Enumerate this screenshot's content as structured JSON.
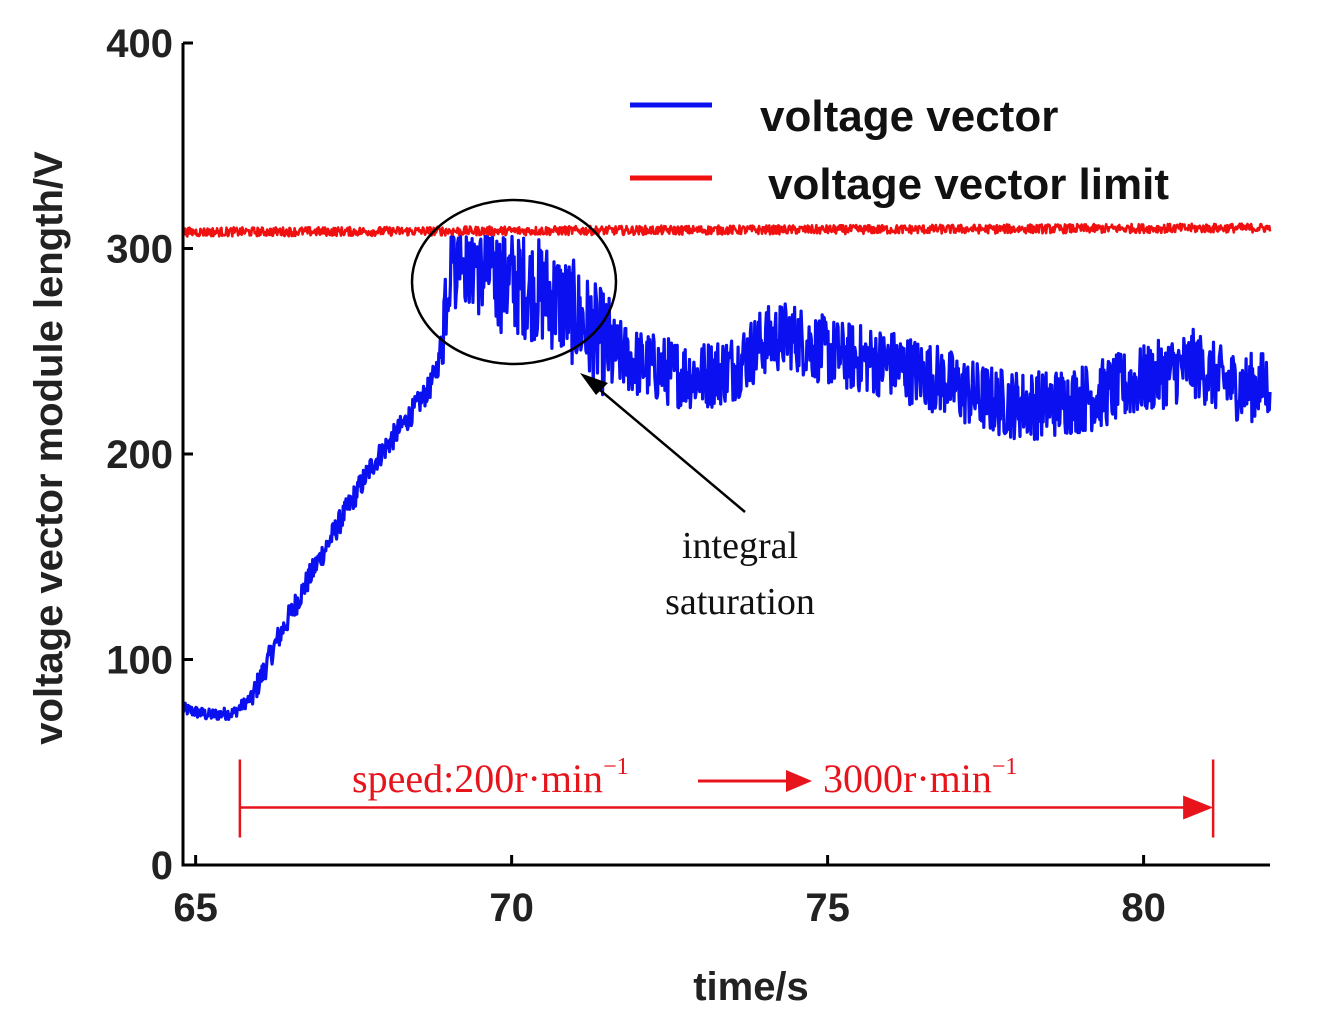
{
  "chart_data": {
    "type": "line",
    "title": "",
    "xlabel": "time/s",
    "ylabel": "voltage vector module length/V",
    "xlim": [
      64.8,
      82.0
    ],
    "ylim": [
      0,
      400
    ],
    "xticks": [
      65,
      70,
      75,
      80
    ],
    "yticks": [
      0,
      100,
      200,
      300,
      400
    ],
    "legend_position": "top-right",
    "series": [
      {
        "name": "voltage vector",
        "color": "#0a10f0",
        "x": [
          64.8,
          65.2,
          65.6,
          65.9,
          66.3,
          66.8,
          67.3,
          67.8,
          68.3,
          68.7,
          68.85,
          69.0,
          69.2,
          69.5,
          69.8,
          70.1,
          70.4,
          70.7,
          71.0,
          71.3,
          71.6,
          72.0,
          72.5,
          73.0,
          73.5,
          74.0,
          74.4,
          74.8,
          75.2,
          75.6,
          76.0,
          76.4,
          76.8,
          77.2,
          77.6,
          78.0,
          78.4,
          78.8,
          79.2,
          79.6,
          80.0,
          80.4,
          80.8,
          81.2,
          81.6,
          82.0
        ],
        "values": [
          76,
          73,
          74,
          82,
          110,
          140,
          168,
          195,
          215,
          232,
          245,
          292,
          300,
          292,
          285,
          283,
          280,
          275,
          268,
          258,
          250,
          244,
          240,
          238,
          242,
          255,
          258,
          252,
          248,
          246,
          244,
          240,
          236,
          230,
          226,
          224,
          224,
          226,
          228,
          232,
          236,
          240,
          244,
          236,
          232,
          234
        ]
      },
      {
        "name": "voltage vector limit",
        "color": "#f01010",
        "x": [
          64.8,
          82.0
        ],
        "values": [
          308,
          310
        ]
      }
    ],
    "annotations": {
      "saturation_label_line1": "integral",
      "saturation_label_line2": "saturation",
      "speed_prefix": "speed:200r·min",
      "speed_suffix": "3000r·min",
      "superscript": "−1",
      "speed_arrow_start": 65.7,
      "speed_arrow_end": 81.1,
      "speed_arrow_value": 28
    }
  }
}
